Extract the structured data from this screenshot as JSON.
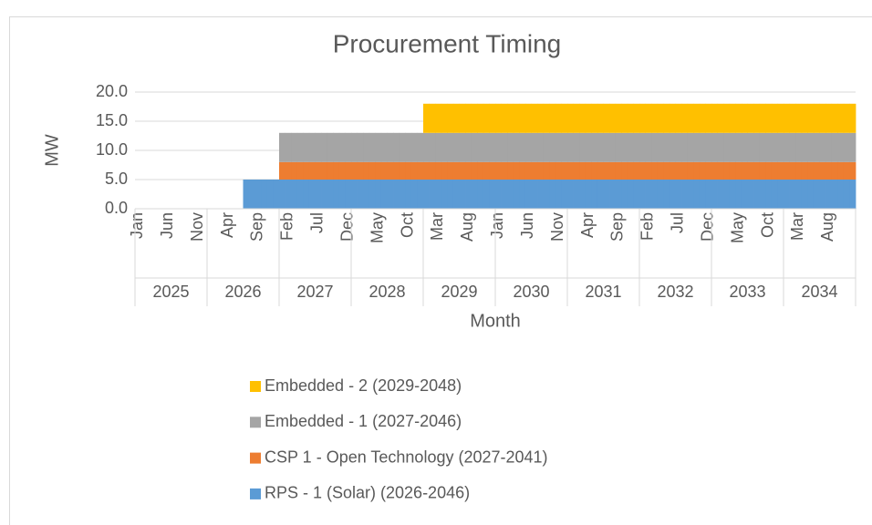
{
  "chart_data": {
    "type": "stacked_column",
    "title": "Procurement Timing",
    "x_label": "Month",
    "y_label": "MW",
    "categories": [
      "Jan",
      null,
      null,
      null,
      null,
      "Jun",
      null,
      null,
      null,
      null,
      "Nov",
      null,
      null,
      null,
      null,
      "Apr",
      null,
      null,
      null,
      null,
      "Sep",
      null,
      null,
      null,
      null,
      "Feb",
      null,
      null,
      null,
      null,
      "Jul",
      null,
      null,
      null,
      null,
      "Dec",
      null,
      null,
      null,
      null,
      "May",
      null,
      null,
      null,
      null,
      "Oct",
      null,
      null,
      null,
      null,
      "Mar",
      null,
      null,
      null,
      null,
      "Aug",
      null,
      null,
      null,
      null,
      "Jan",
      null,
      null,
      null,
      null,
      "Jun",
      null,
      null,
      null,
      null,
      "Nov",
      null,
      null,
      null,
      null,
      "Apr",
      null,
      null,
      null,
      null,
      "Sep",
      null,
      null,
      null,
      null,
      "Feb",
      null,
      null,
      null,
      null,
      "Jul",
      null,
      null,
      null,
      null,
      "Dec",
      null,
      null,
      null,
      null,
      "May",
      null,
      null,
      null,
      null,
      "Oct",
      null,
      null,
      null,
      null,
      "Mar",
      null,
      null,
      null,
      null,
      "Aug",
      null,
      null,
      null,
      null
    ],
    "year_groups": [
      "2025",
      "2026",
      "2027",
      "2028",
      "2029",
      "2030",
      "2031",
      "2032",
      "2033",
      "2034"
    ],
    "series": [
      {
        "name": "RPS - 1 (Solar) (2026-2046)",
        "color": "#5b9bd5",
        "values": [
          0,
          0,
          0,
          0,
          0,
          0,
          0,
          0,
          0,
          0,
          0,
          0,
          0,
          0,
          0,
          0,
          0,
          0,
          5,
          5,
          5,
          5,
          5,
          5,
          5,
          5,
          5,
          5,
          5,
          5,
          5,
          5,
          5,
          5,
          5,
          5,
          5,
          5,
          5,
          5,
          5,
          5,
          5,
          5,
          5,
          5,
          5,
          5,
          5,
          5,
          5,
          5,
          5,
          5,
          5,
          5,
          5,
          5,
          5,
          5,
          5,
          5,
          5,
          5,
          5,
          5,
          5,
          5,
          5,
          5,
          5,
          5,
          5,
          5,
          5,
          5,
          5,
          5,
          5,
          5,
          5,
          5,
          5,
          5,
          5,
          5,
          5,
          5,
          5,
          5,
          5,
          5,
          5,
          5,
          5,
          5,
          5,
          5,
          5,
          5,
          5,
          5,
          5,
          5,
          5,
          5,
          5,
          5,
          5,
          5,
          5,
          5,
          5,
          5,
          5,
          5,
          5,
          5,
          5,
          5
        ]
      },
      {
        "name": "CSP 1 - Open Technology (2027-2041)",
        "color": "#ed7d31",
        "values": [
          0,
          0,
          0,
          0,
          0,
          0,
          0,
          0,
          0,
          0,
          0,
          0,
          0,
          0,
          0,
          0,
          0,
          0,
          0,
          0,
          0,
          0,
          0,
          0,
          3,
          3,
          3,
          3,
          3,
          3,
          3,
          3,
          3,
          3,
          3,
          3,
          3,
          3,
          3,
          3,
          3,
          3,
          3,
          3,
          3,
          3,
          3,
          3,
          3,
          3,
          3,
          3,
          3,
          3,
          3,
          3,
          3,
          3,
          3,
          3,
          3,
          3,
          3,
          3,
          3,
          3,
          3,
          3,
          3,
          3,
          3,
          3,
          3,
          3,
          3,
          3,
          3,
          3,
          3,
          3,
          3,
          3,
          3,
          3,
          3,
          3,
          3,
          3,
          3,
          3,
          3,
          3,
          3,
          3,
          3,
          3,
          3,
          3,
          3,
          3,
          3,
          3,
          3,
          3,
          3,
          3,
          3,
          3,
          3,
          3,
          3,
          3,
          3,
          3,
          3,
          3,
          3,
          3,
          3,
          3
        ]
      },
      {
        "name": "Embedded - 1 (2027-2046)",
        "color": "#a5a5a5",
        "values": [
          0,
          0,
          0,
          0,
          0,
          0,
          0,
          0,
          0,
          0,
          0,
          0,
          0,
          0,
          0,
          0,
          0,
          0,
          0,
          0,
          0,
          0,
          0,
          0,
          5,
          5,
          5,
          5,
          5,
          5,
          5,
          5,
          5,
          5,
          5,
          5,
          5,
          5,
          5,
          5,
          5,
          5,
          5,
          5,
          5,
          5,
          5,
          5,
          5,
          5,
          5,
          5,
          5,
          5,
          5,
          5,
          5,
          5,
          5,
          5,
          5,
          5,
          5,
          5,
          5,
          5,
          5,
          5,
          5,
          5,
          5,
          5,
          5,
          5,
          5,
          5,
          5,
          5,
          5,
          5,
          5,
          5,
          5,
          5,
          5,
          5,
          5,
          5,
          5,
          5,
          5,
          5,
          5,
          5,
          5,
          5,
          5,
          5,
          5,
          5,
          5,
          5,
          5,
          5,
          5,
          5,
          5,
          5,
          5,
          5,
          5,
          5,
          5,
          5,
          5,
          5,
          5,
          5,
          5,
          5
        ]
      },
      {
        "name": "Embedded - 2 (2029-2048)",
        "color": "#ffc000",
        "values": [
          0,
          0,
          0,
          0,
          0,
          0,
          0,
          0,
          0,
          0,
          0,
          0,
          0,
          0,
          0,
          0,
          0,
          0,
          0,
          0,
          0,
          0,
          0,
          0,
          0,
          0,
          0,
          0,
          0,
          0,
          0,
          0,
          0,
          0,
          0,
          0,
          0,
          0,
          0,
          0,
          0,
          0,
          0,
          0,
          0,
          0,
          0,
          0,
          5,
          5,
          5,
          5,
          5,
          5,
          5,
          5,
          5,
          5,
          5,
          5,
          5,
          5,
          5,
          5,
          5,
          5,
          5,
          5,
          5,
          5,
          5,
          5,
          5,
          5,
          5,
          5,
          5,
          5,
          5,
          5,
          5,
          5,
          5,
          5,
          5,
          5,
          5,
          5,
          5,
          5,
          5,
          5,
          5,
          5,
          5,
          5,
          5,
          5,
          5,
          5,
          5,
          5,
          5,
          5,
          5,
          5,
          5,
          5,
          5,
          5,
          5,
          5,
          5,
          5,
          5,
          5,
          5,
          5,
          5,
          5
        ]
      }
    ],
    "ylim": [
      0,
      20
    ],
    "yticks": [
      {
        "value": 0,
        "label": "0.0"
      },
      {
        "value": 5,
        "label": "5.0"
      },
      {
        "value": 10,
        "label": "10.0"
      },
      {
        "value": 15,
        "label": "15.0"
      },
      {
        "value": 20,
        "label": "20.0"
      }
    ],
    "grid": true,
    "legend": "bottom"
  }
}
